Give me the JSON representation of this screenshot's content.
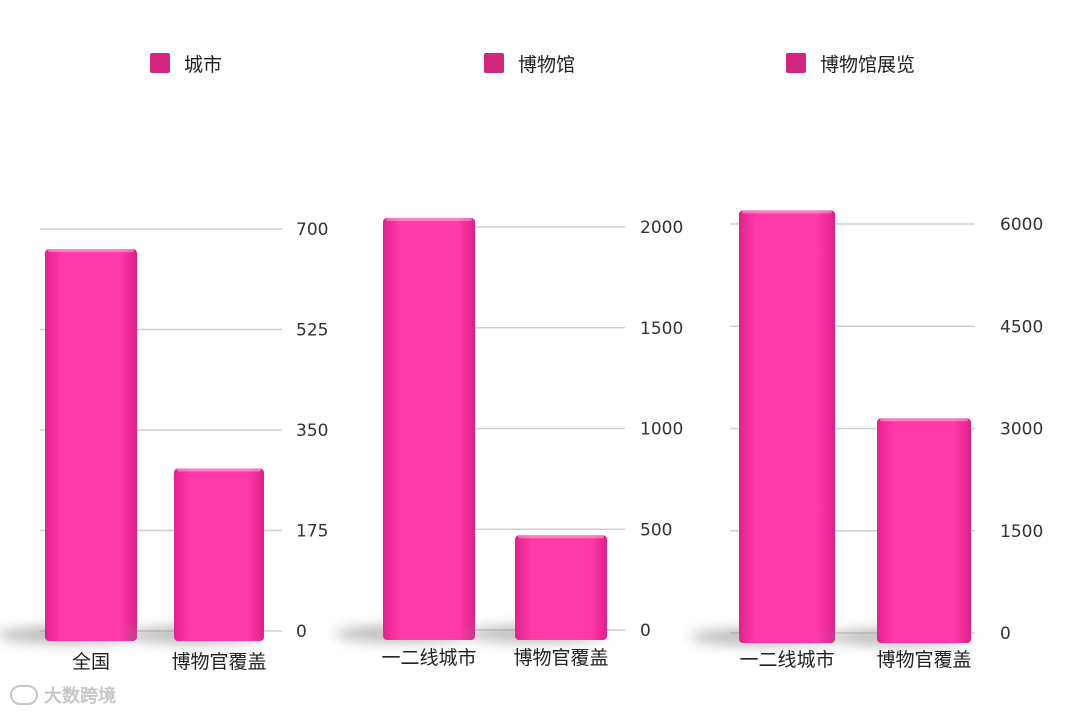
{
  "legend": [
    {
      "label": "城市",
      "color": "#d2257e"
    },
    {
      "label": "博物馆",
      "color": "#d2257e"
    },
    {
      "label": "博物馆展览",
      "color": "#d2257e"
    }
  ],
  "bar_color": "#ff3aa8",
  "watermark": {
    "text": "大数跨境",
    "icon": "wechat-logo-icon"
  },
  "chart_data": [
    {
      "type": "bar",
      "series_name": "城市",
      "categories": [
        "全国",
        "博物官覆盖"
      ],
      "values": [
        665,
        283
      ],
      "ylim": [
        0,
        700
      ],
      "yticks": [
        "0",
        "175",
        "350",
        "525",
        "700"
      ],
      "grid": true,
      "axis_side": "right"
    },
    {
      "type": "bar",
      "series_name": "博物馆",
      "categories": [
        "一二线城市",
        "博物官覆盖"
      ],
      "values": [
        2045,
        470
      ],
      "ylim": [
        0,
        2000
      ],
      "yticks": [
        "0",
        "500",
        "1000",
        "1500",
        "2000"
      ],
      "grid": true,
      "axis_side": "right"
    },
    {
      "type": "bar",
      "series_name": "博物馆展览",
      "categories": [
        "一二线城市",
        "博物官覆盖"
      ],
      "values": [
        6200,
        3150
      ],
      "ylim": [
        0,
        6000
      ],
      "yticks": [
        "0",
        "1500",
        "3000",
        "4500",
        "6000"
      ],
      "grid": true,
      "axis_side": "right"
    }
  ]
}
